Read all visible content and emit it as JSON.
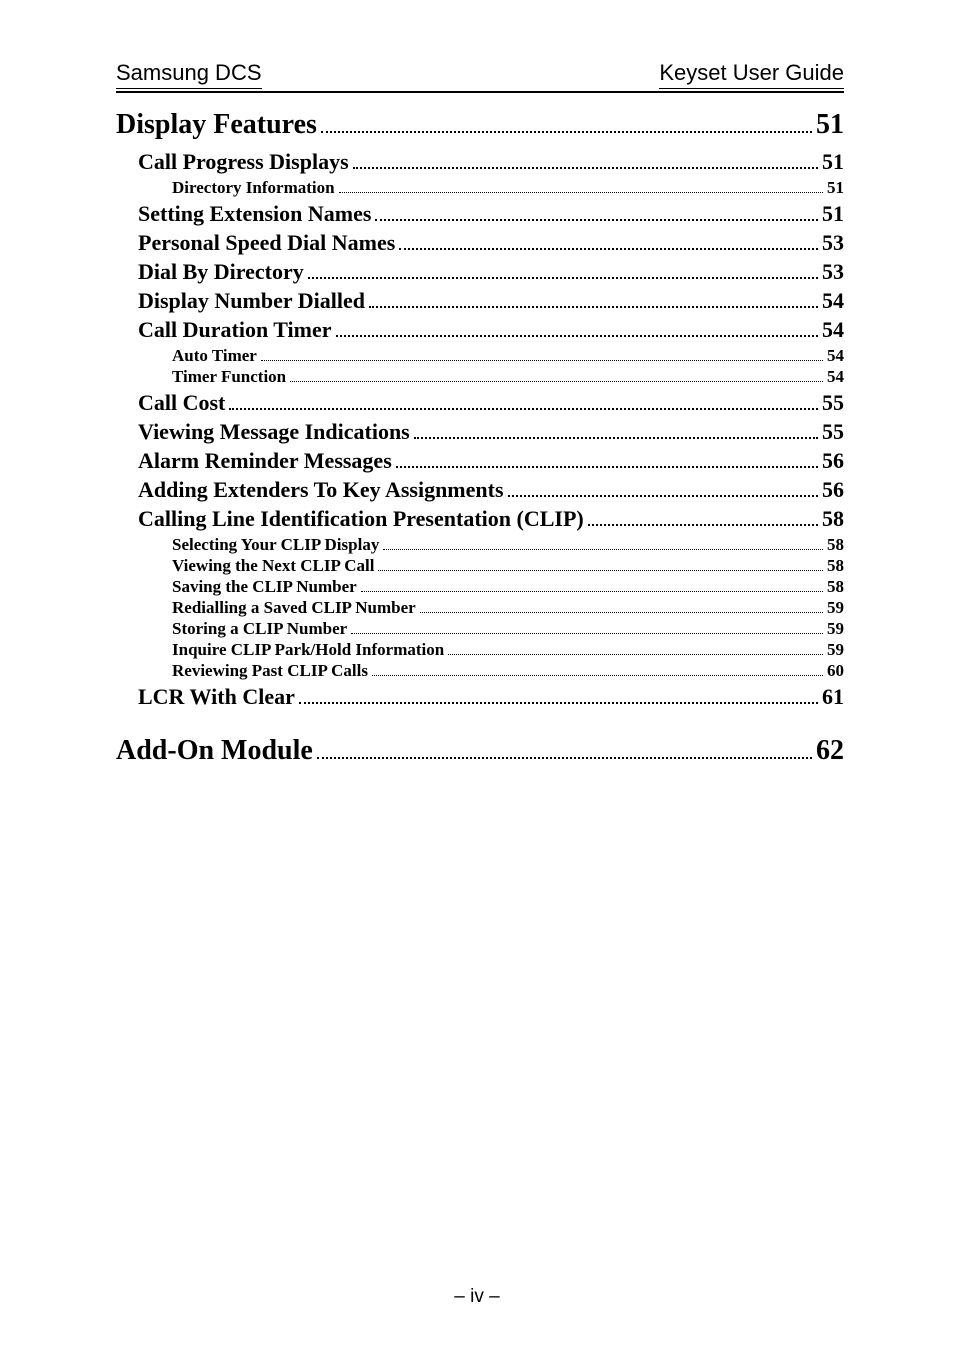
{
  "header": {
    "left": "Samsung DCS",
    "right": "Keyset User Guide"
  },
  "footer": "– iv –",
  "toc": [
    {
      "label": "Display Features",
      "page": "51",
      "level": 0
    },
    {
      "label": "Call Progress Displays",
      "page": "51",
      "level": 1
    },
    {
      "label": "Directory Information",
      "page": "51",
      "level": 2
    },
    {
      "label": "Setting Extension Names",
      "page": "51",
      "level": 1
    },
    {
      "label": "Personal Speed Dial Names",
      "page": "53",
      "level": 1
    },
    {
      "label": "Dial By Directory",
      "page": "53",
      "level": 1
    },
    {
      "label": "Display Number Dialled",
      "page": "54",
      "level": 1
    },
    {
      "label": "Call Duration Timer",
      "page": "54",
      "level": 1
    },
    {
      "label": "Auto Timer",
      "page": "54",
      "level": 2
    },
    {
      "label": "Timer Function",
      "page": "54",
      "level": 2
    },
    {
      "label": "Call Cost",
      "page": "55",
      "level": 1
    },
    {
      "label": "Viewing Message Indications",
      "page": "55",
      "level": 1
    },
    {
      "label": "Alarm Reminder Messages",
      "page": "56",
      "level": 1
    },
    {
      "label": "Adding Extenders To Key Assignments",
      "page": "56",
      "level": 1
    },
    {
      "label": "Calling Line Identification Presentation (CLIP)",
      "page": "58",
      "level": 1
    },
    {
      "label": "Selecting Your CLIP Display",
      "page": "58",
      "level": 2
    },
    {
      "label": "Viewing the Next CLIP Call",
      "page": "58",
      "level": 2
    },
    {
      "label": "Saving the CLIP Number",
      "page": "58",
      "level": 2
    },
    {
      "label": "Redialling a Saved CLIP Number",
      "page": "59",
      "level": 2
    },
    {
      "label": "Storing a CLIP Number",
      "page": "59",
      "level": 2
    },
    {
      "label": "Inquire CLIP Park/Hold Information",
      "page": "59",
      "level": 2
    },
    {
      "label": "Reviewing Past CLIP Calls",
      "page": "60",
      "level": 2
    },
    {
      "label": "LCR With Clear",
      "page": "61",
      "level": 1
    },
    {
      "gap": true
    },
    {
      "label": "Add-On Module",
      "page": "62",
      "level": 0
    }
  ]
}
